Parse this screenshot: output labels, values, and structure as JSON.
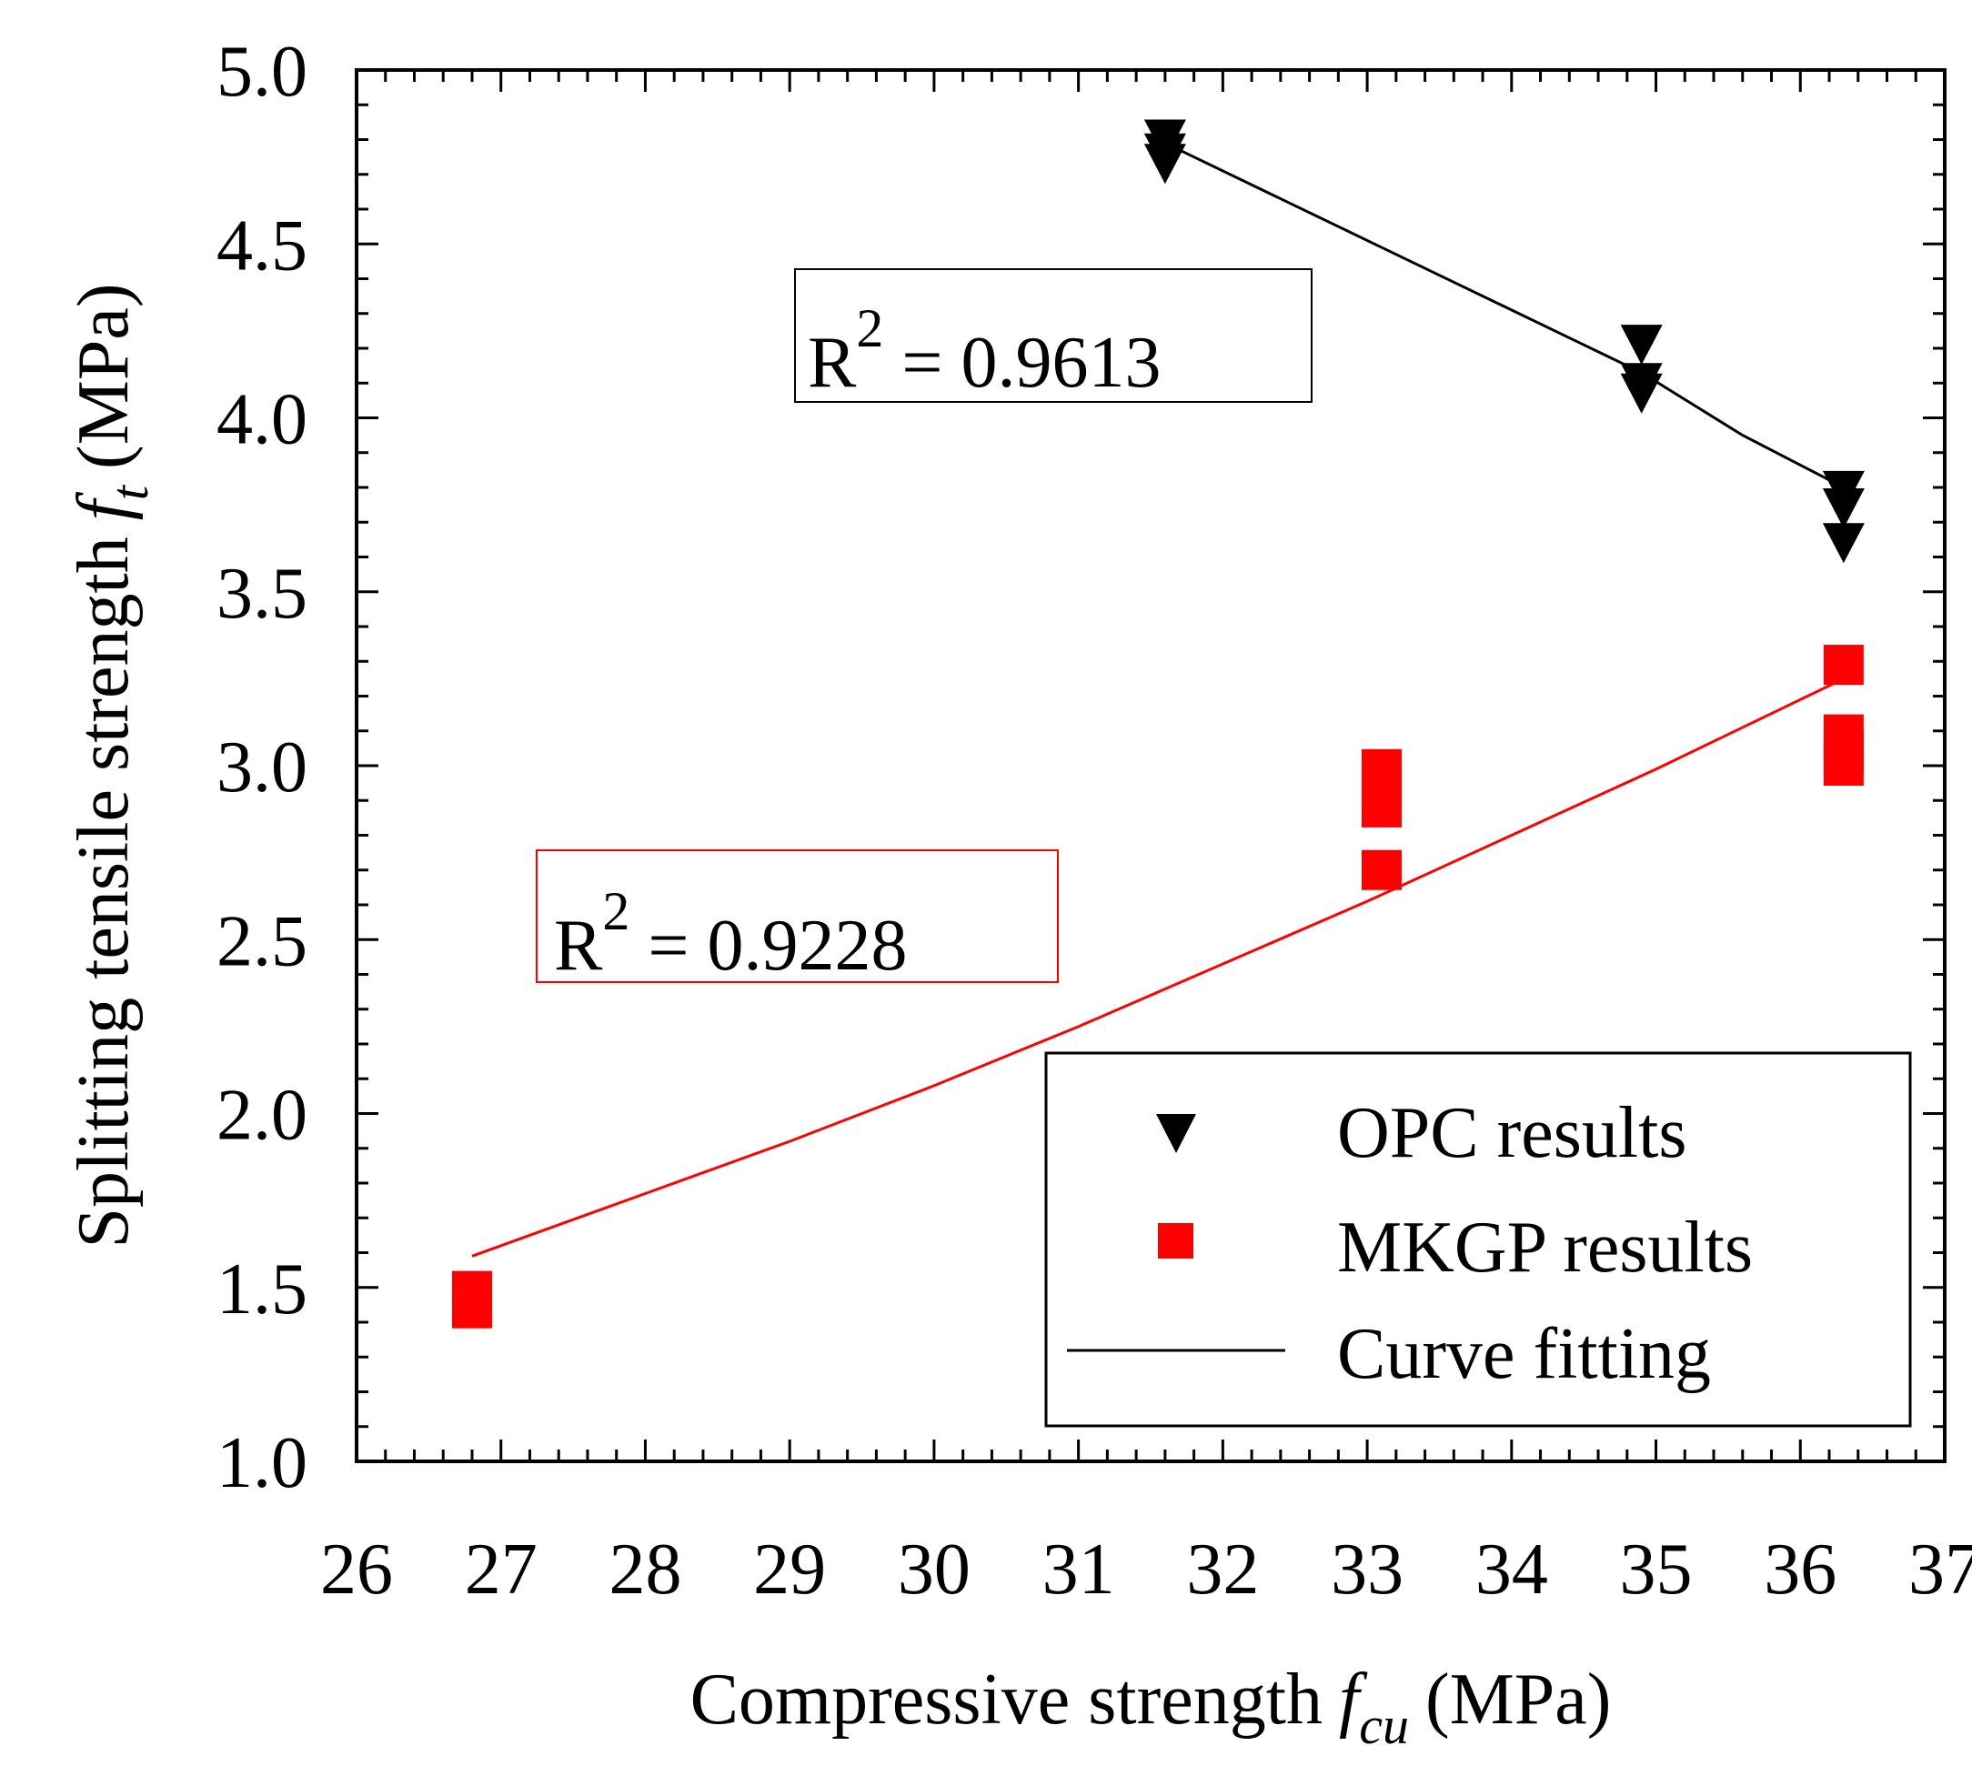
{
  "chart_data": {
    "type": "scatter",
    "title": "",
    "xlabel": {
      "main": "Compressive strength",
      "symbol": "f",
      "subscript": "cu",
      "unit": "(MPa)"
    },
    "ylabel": {
      "main": "Splitting tensile strength",
      "symbol": "f",
      "subscript": "t",
      "unit": "(MPa)"
    },
    "xlim": [
      26,
      37
    ],
    "ylim": [
      1.0,
      5.0
    ],
    "x_ticks": [
      "26",
      "27",
      "28",
      "29",
      "30",
      "31",
      "32",
      "33",
      "34",
      "35",
      "36",
      "37"
    ],
    "y_ticks": [
      "1.0",
      "1.5",
      "2.0",
      "2.5",
      "3.0",
      "3.5",
      "4.0",
      "4.5",
      "5.0"
    ],
    "grid": false,
    "legend_position": "bottom-right",
    "colors": {
      "opc": "#000000",
      "mkgp": "#ff0000",
      "fit_opc": "#000000",
      "fit_mkgp": "#ff0000"
    },
    "series": [
      {
        "name": "OPC results",
        "marker": "triangle-down",
        "color": "#000000",
        "points": [
          [
            31.6,
            4.8
          ],
          [
            31.6,
            4.76
          ],
          [
            31.6,
            4.73
          ],
          [
            34.9,
            4.21
          ],
          [
            34.9,
            4.1
          ],
          [
            34.9,
            4.07
          ],
          [
            36.3,
            3.79
          ],
          [
            36.3,
            3.74
          ],
          [
            36.3,
            3.64
          ]
        ]
      },
      {
        "name": "MKGP results",
        "marker": "square",
        "color": "#ff0000",
        "points": [
          [
            26.8,
            1.49
          ],
          [
            26.8,
            1.47
          ],
          [
            26.8,
            1.44
          ],
          [
            33.1,
            2.99
          ],
          [
            33.1,
            2.94
          ],
          [
            33.1,
            2.88
          ],
          [
            33.1,
            2.7
          ],
          [
            36.3,
            3.29
          ],
          [
            36.3,
            3.09
          ],
          [
            36.3,
            3.04
          ],
          [
            36.3,
            3.0
          ]
        ]
      }
    ],
    "fit_lines": [
      {
        "series": "OPC results",
        "color": "#000000",
        "x": [
          31.6,
          32.5,
          33.5,
          34.5,
          34.9,
          35.6,
          36.3
        ],
        "y": [
          4.79,
          4.61,
          4.41,
          4.21,
          4.13,
          3.95,
          3.8
        ]
      },
      {
        "series": "MKGP results",
        "color": "#ff0000",
        "x": [
          26.8,
          28,
          29,
          30,
          31,
          32,
          33,
          34,
          35,
          36.3
        ],
        "y": [
          1.59,
          1.77,
          1.92,
          2.08,
          2.25,
          2.43,
          2.61,
          2.8,
          2.99,
          3.25
        ]
      }
    ],
    "annotations": [
      {
        "label": "R",
        "sup": "2",
        "eq": "= 0.9613",
        "color": "#000000"
      },
      {
        "label": "R",
        "sup": "2",
        "eq": "= 0.9228",
        "color": "#ff0000"
      }
    ],
    "legend": [
      {
        "label": "OPC results",
        "marker": "triangle-down",
        "color": "#000000"
      },
      {
        "label": "MKGP results",
        "marker": "square",
        "color": "#ff0000"
      },
      {
        "label": "Curve fitting",
        "marker": "line",
        "color": "#000000"
      }
    ]
  }
}
